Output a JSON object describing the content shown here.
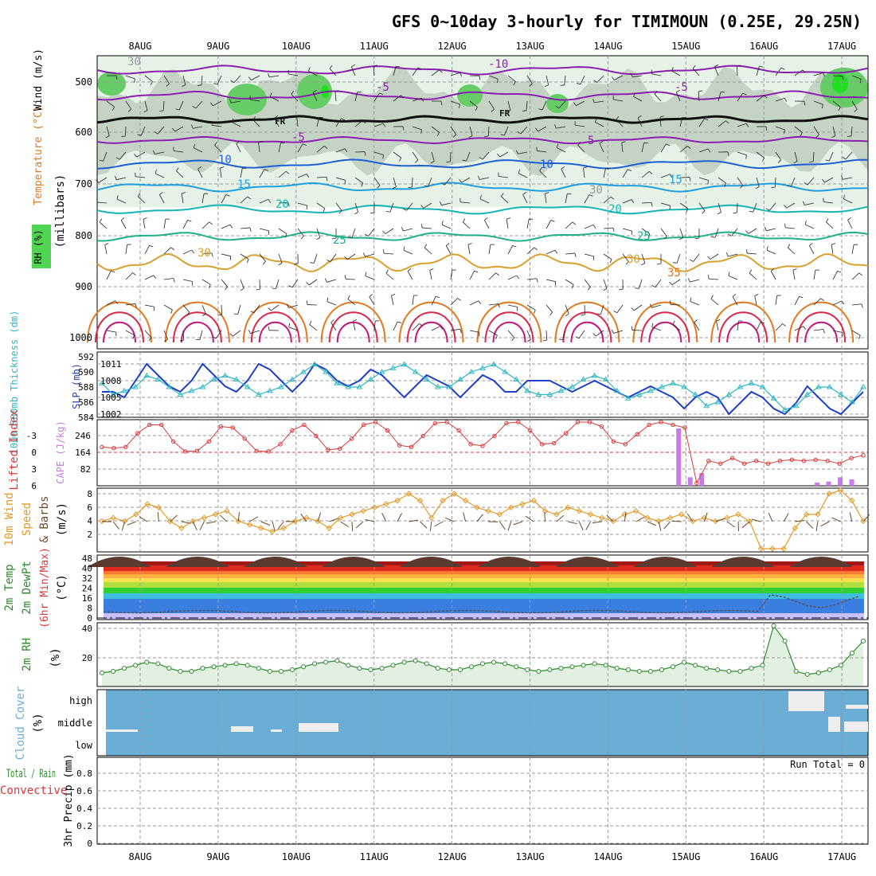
{
  "title": "GFS 0~10day 3-hourly for TIMIMOUN (0.25E, 29.25N)",
  "dates": [
    "8AUG",
    "9AUG",
    "10AUG",
    "11AUG",
    "12AUG",
    "13AUG",
    "14AUG",
    "15AUG",
    "16AUG",
    "17AUG"
  ],
  "colors": {
    "grid": "#9a9a9a",
    "slp": "#1f3fc6",
    "thickness": "#2fb7c6",
    "lifted": "#d93a3a",
    "cape": "#c77be8",
    "wind": "#e39a2a",
    "barb": "#6b4a2a",
    "rh": "#2e8b2e",
    "cloud": "#6aaed6",
    "cloud_fill": "#eeeeee",
    "fr": "#111111",
    "temp_m10": "#8a1fb0",
    "temp_10": "#1f5fd6",
    "temp_15": "#1f9fe0",
    "temp_20": "#16b4b4",
    "temp_25": "#1fb08a",
    "temp_30": "#d9a030",
    "temp_35": "#e07a20",
    "temp_40": "#d9284a",
    "temp_45": "#c01a7a"
  },
  "panels": {
    "upper": {
      "ylabel_rh": "RH (%)",
      "ylabel_temp": "Temperature (°C)",
      "ylabel_wind": "Wind (m/s)",
      "ylabel_units": "(millibars)",
      "yticks": [
        "500",
        "600",
        "700",
        "800",
        "900",
        "1000"
      ],
      "labels": [
        {
          "text": "-10",
          "x": 613,
          "y": 85,
          "color": "temp_m10"
        },
        {
          "text": "-5",
          "x": 472,
          "y": 114,
          "color": "temp_m10"
        },
        {
          "text": "-5",
          "x": 847,
          "y": 114,
          "color": "temp_m10"
        },
        {
          "text": "-5",
          "x": 366,
          "y": 177,
          "color": "temp_m10"
        },
        {
          "text": "5",
          "x": 738,
          "y": 181,
          "color": "temp_m10"
        },
        {
          "text": "FR",
          "x": 345,
          "y": 156,
          "color": "fr"
        },
        {
          "text": "FR",
          "x": 627,
          "y": 146,
          "color": "fr"
        },
        {
          "text": "10",
          "x": 274,
          "y": 205,
          "color": "temp_10"
        },
        {
          "text": "10",
          "x": 678,
          "y": 211,
          "color": "temp_10"
        },
        {
          "text": "15",
          "x": 298,
          "y": 236,
          "color": "temp_15"
        },
        {
          "text": "15",
          "x": 840,
          "y": 230,
          "color": "temp_15"
        },
        {
          "text": "20",
          "x": 346,
          "y": 261,
          "color": "temp_20"
        },
        {
          "text": "20",
          "x": 764,
          "y": 267,
          "color": "temp_20"
        },
        {
          "text": "25",
          "x": 418,
          "y": 306,
          "color": "temp_25"
        },
        {
          "text": "25",
          "x": 800,
          "y": 301,
          "color": "temp_25"
        },
        {
          "text": "30",
          "x": 248,
          "y": 322,
          "color": "temp_30"
        },
        {
          "text": "30",
          "x": 787,
          "y": 330,
          "color": "temp_30"
        },
        {
          "text": "35",
          "x": 838,
          "y": 347,
          "color": "temp_35"
        },
        {
          "text": "30",
          "x": 160,
          "y": 82,
          "color": "grid"
        },
        {
          "text": "30",
          "x": 740,
          "y": 243,
          "color": "grid"
        }
      ]
    },
    "slp_thick": {
      "ylabel_thick": "1000-500mb Thickness (dm)",
      "ylabel_slp": "SLP (mb)",
      "left_ticks": [
        "592",
        "590",
        "588",
        "586",
        "584"
      ],
      "right_ticks": [
        "1011",
        "1008",
        "1005",
        "1002"
      ]
    },
    "cape_li": {
      "ylabel_li": "Lifted Index",
      "ylabel_cape": "CAPE (J/kg)",
      "left_ticks": [
        "-3",
        "0",
        "3",
        "6"
      ],
      "right_ticks": [
        "246",
        "164",
        "82"
      ]
    },
    "wind10": {
      "ylabel_a": "10m Wind",
      "ylabel_b": "Speed",
      "ylabel_c": "& Barbs",
      "ylabel_d": "(m/s)",
      "yticks": [
        "8",
        "6",
        "4",
        "2"
      ]
    },
    "temp2m": {
      "ylabel_a": "2m Temp",
      "ylabel_b": "2m DewPt",
      "ylabel_c": "(6hr Min/Max)",
      "ylabel_d": "(°C)",
      "yticks": [
        "48",
        "40",
        "32",
        "24",
        "16",
        "8",
        "0"
      ]
    },
    "rh2m": {
      "ylabel_a": "2m RH",
      "ylabel_b": "(%)",
      "yticks": [
        "40",
        "20"
      ]
    },
    "cloud": {
      "ylabel_a": "Cloud Cover",
      "ylabel_b": "(%)",
      "levels": [
        "high",
        "middle",
        "low"
      ]
    },
    "precip": {
      "ylabel_a": "Total / Rain",
      "ylabel_b": "Convective",
      "ylabel_c": "3hr Precip (mm)",
      "yticks": [
        "0.8",
        "0.6",
        "0.4",
        "0.2",
        "0"
      ],
      "run_total": "Run Total = 0"
    }
  },
  "chart_data": [
    {
      "type": "line",
      "name": "slp_thickness",
      "series": [
        {
          "name": "SLP (mb)",
          "axis": "right",
          "values": [
            1006,
            1006,
            1005,
            1008,
            1011,
            1009,
            1007,
            1006,
            1008,
            1011,
            1009,
            1007,
            1006,
            1008,
            1011,
            1010,
            1008,
            1006,
            1008,
            1011,
            1010,
            1008,
            1007,
            1008,
            1010,
            1009,
            1007,
            1005,
            1007,
            1009,
            1008,
            1007,
            1005,
            1007,
            1009,
            1008,
            1006,
            1006,
            1008,
            1008,
            1008,
            1007,
            1006,
            1007,
            1008,
            1007,
            1006,
            1005,
            1006,
            1007,
            1006,
            1005,
            1003,
            1005,
            1006,
            1005,
            1002,
            1004,
            1006,
            1005,
            1003,
            1002,
            1004,
            1007,
            1005,
            1003,
            1002,
            1004,
            1006
          ]
        },
        {
          "name": "1000-500mb Thickness (dm)",
          "axis": "left",
          "values": [
            587.5,
            589,
            588.5,
            588,
            586.5,
            587,
            588,
            589,
            588.5,
            588,
            587,
            586.5,
            587,
            588,
            589,
            588.5,
            588,
            587,
            586,
            585,
            586,
            587.5,
            588,
            588,
            587,
            586,
            585.5,
            585,
            586,
            587,
            588,
            588,
            587,
            586,
            585.5,
            585,
            586,
            587,
            588.5,
            589,
            589,
            588.5,
            588,
            587,
            586.5,
            587,
            588.5,
            589.5,
            589,
            588.5,
            588,
            587.5,
            588,
            589,
            590.5,
            590,
            589,
            588,
            587.5,
            588,
            589.5,
            591,
            590.5,
            589,
            588,
            588,
            589,
            590,
            588
          ]
        }
      ]
    },
    {
      "type": "line",
      "name": "lifted_index_cape",
      "series": [
        {
          "name": "Lifted Index",
          "values": [
            1.5,
            1.3,
            1.5,
            4.0,
            5.5,
            5.5,
            2.5,
            0.7,
            0.8,
            2.5,
            5.2,
            5.0,
            3.0,
            0.8,
            0.7,
            2.0,
            4.5,
            5.5,
            3.5,
            1.0,
            1.2,
            3.0,
            5.5,
            6.0,
            4.5,
            1.8,
            1.5,
            3.5,
            5.8,
            6.0,
            4.5,
            2.0,
            1.7,
            3.5,
            5.8,
            6.0,
            4.5,
            2.0,
            2.2,
            4.0,
            6.0,
            6.0,
            5.2,
            2.5,
            2.0,
            3.8,
            5.5,
            6.0,
            5.5,
            5.0,
            -5.0,
            -1.0,
            -1.5,
            -0.5,
            -1.5,
            -1.0,
            -1.5,
            -1.0,
            -0.8,
            -1.0,
            -0.8,
            -1.0,
            -1.5,
            -0.5,
            0.0
          ]
        },
        {
          "name": "CAPE (J/kg)",
          "values": [
            0,
            0,
            0,
            0,
            0,
            0,
            0,
            0,
            0,
            0,
            0,
            0,
            0,
            0,
            0,
            0,
            0,
            0,
            0,
            0,
            0,
            0,
            0,
            0,
            0,
            0,
            0,
            0,
            0,
            0,
            0,
            0,
            0,
            0,
            0,
            0,
            0,
            0,
            0,
            0,
            0,
            0,
            0,
            0,
            0,
            0,
            0,
            0,
            0,
            0,
            270,
            40,
            60,
            0,
            0,
            0,
            0,
            0,
            0,
            0,
            0,
            0,
            15,
            20,
            40,
            30,
            0
          ]
        }
      ]
    },
    {
      "type": "line",
      "name": "wind10m_speed",
      "series": [
        {
          "name": "10m Wind Speed (m/s)",
          "values": [
            4,
            4.5,
            4,
            5,
            6.5,
            6,
            4,
            3,
            4,
            4.5,
            5,
            5.5,
            4,
            3.5,
            3,
            2.5,
            3,
            4,
            4.5,
            4,
            3,
            4.5,
            5,
            5.5,
            6,
            6.5,
            7,
            8,
            7,
            4.5,
            7,
            8,
            7,
            6,
            5.5,
            5,
            6,
            6.5,
            7,
            5.5,
            5,
            6,
            5.5,
            5,
            4.5,
            4,
            5,
            5.5,
            4.5,
            4,
            4.5,
            5,
            4,
            4.5,
            4,
            4.5,
            5,
            4,
            0,
            0,
            0,
            3,
            5,
            5,
            8,
            8.5,
            7,
            4
          ]
        }
      ]
    },
    {
      "type": "area",
      "name": "rh2m",
      "series": [
        {
          "name": "2m RH (%)",
          "values": [
            9,
            10,
            12,
            14,
            16,
            15,
            12,
            10,
            10,
            12,
            13,
            14,
            15,
            14,
            12,
            10,
            10,
            11,
            13,
            15,
            16,
            17,
            14,
            12,
            11,
            12,
            14,
            16,
            17,
            15,
            12,
            11,
            11,
            13,
            15,
            16,
            15,
            13,
            11,
            10,
            11,
            12,
            13,
            14,
            15,
            14,
            12,
            11,
            10,
            10,
            11,
            13,
            16,
            14,
            12,
            11,
            10,
            10,
            12,
            14,
            40,
            30,
            10,
            8,
            9,
            11,
            14,
            22,
            30
          ]
        }
      ]
    }
  ]
}
